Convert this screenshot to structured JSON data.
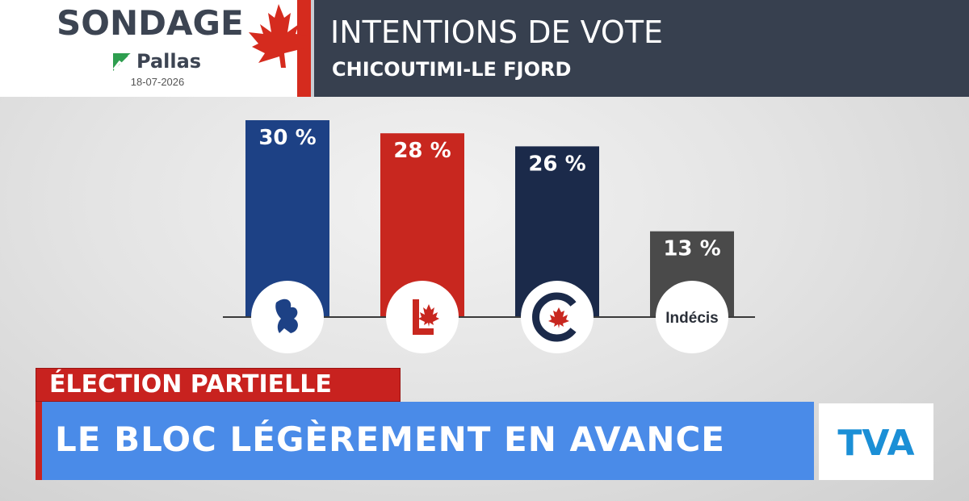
{
  "header": {
    "sondage": "SONDAGE",
    "pollster": "Pallas",
    "date": "18-07-2026",
    "title": "INTENTIONS DE VOTE",
    "riding": "CHICOUTIMI-LE FJORD"
  },
  "colors": {
    "bloc": "#1d4185",
    "liberal": "#c8271f",
    "conservative": "#1b2a4a",
    "undecided": "#4a4a4a",
    "title_bg": "#37404f",
    "headline_bg": "#4a8be8",
    "banner_red": "#c8221f"
  },
  "chart_data": {
    "type": "bar",
    "title": "INTENTIONS DE VOTE",
    "categories": [
      "bloc-quebecois",
      "liberal",
      "conservative",
      "undecided"
    ],
    "values": [
      30,
      28,
      26,
      13
    ],
    "labels": [
      "30 %",
      "28 %",
      "26 %",
      "13 %"
    ],
    "category_text": [
      "",
      "",
      "",
      "Indécis"
    ],
    "unit": "%",
    "ylim": [
      0,
      35
    ],
    "grid": false,
    "legend": "none"
  },
  "lower_third": {
    "tag": "ÉLECTION PARTIELLE",
    "headline": "LE BLOC LÉGÈREMENT EN AVANCE",
    "network": "TVA"
  }
}
